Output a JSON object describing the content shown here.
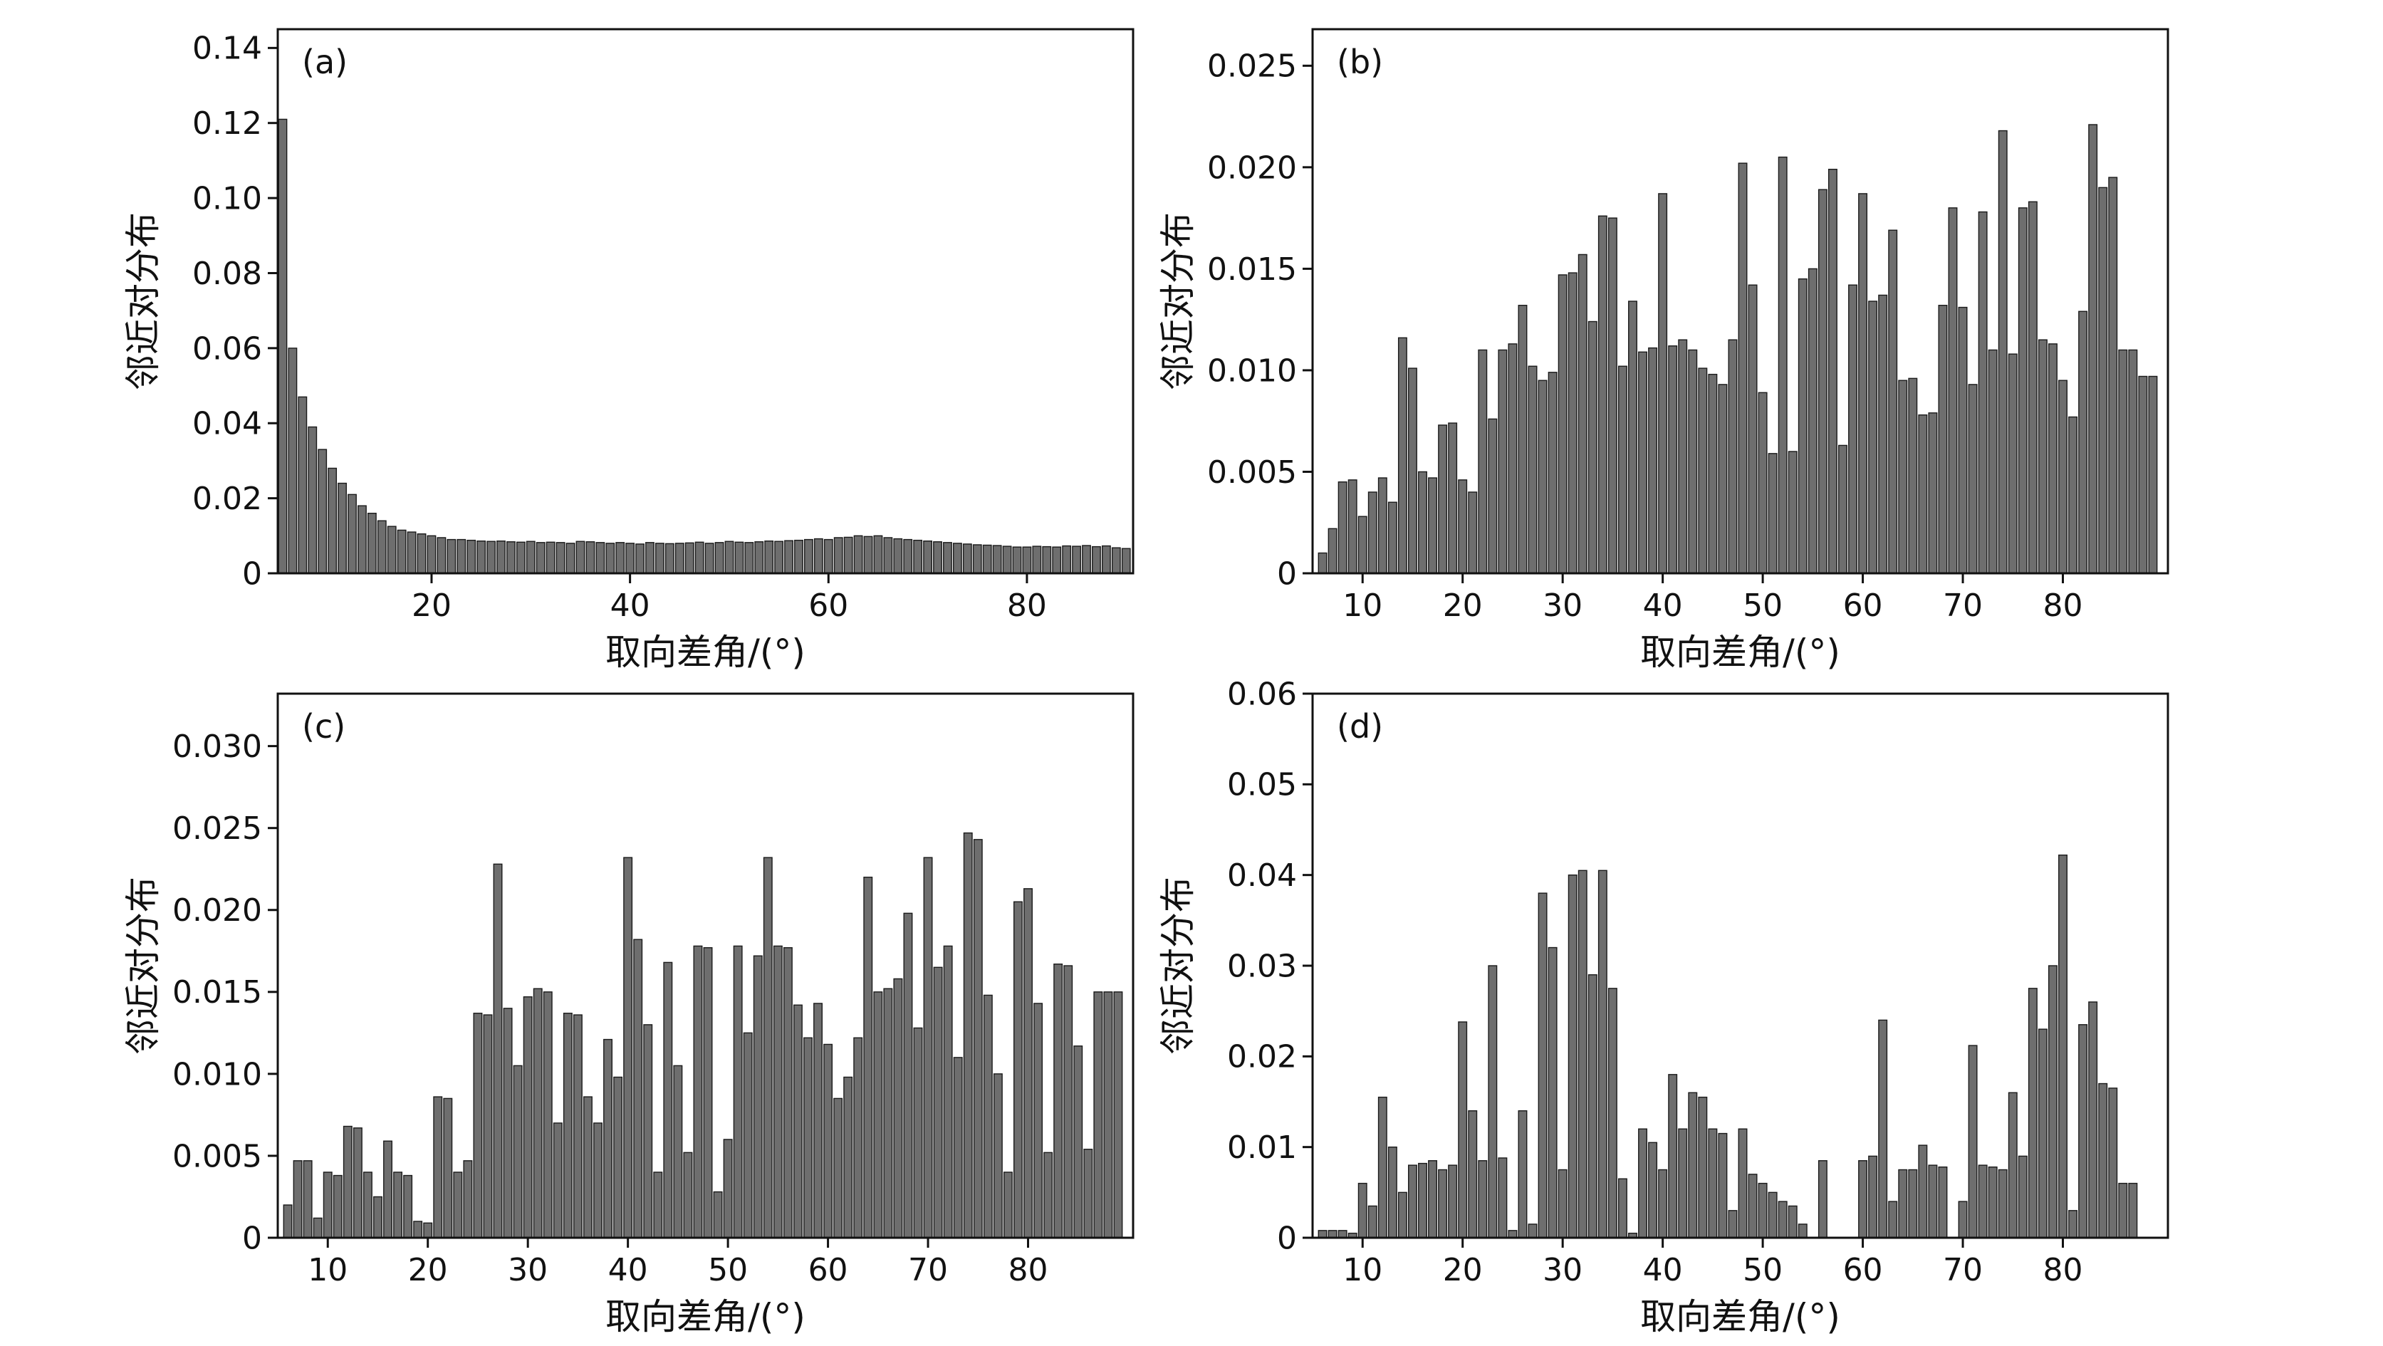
{
  "figure": {
    "x_axis_label": "取向差角/(°)",
    "y_axis_label": "邻近对分布",
    "bar_fill": "#6e6e6e",
    "bar_edge": "#1a1a1a",
    "frame_color": "#111111",
    "background": "#ffffff"
  },
  "chart_data": [
    {
      "type": "bar",
      "id": "a",
      "panel_label": "(a)",
      "xlabel": "取向差角/(°)",
      "ylabel": "邻近对分布",
      "xlim": [
        4.5,
        90.7
      ],
      "ylim": [
        0,
        0.145
      ],
      "xtick_values": [
        20,
        40,
        60,
        80
      ],
      "xtick_labels": [
        "20",
        "40",
        "60",
        "80"
      ],
      "ytick_values": [
        0,
        0.02,
        0.04,
        0.06,
        0.08,
        0.1,
        0.12,
        0.14
      ],
      "ytick_labels": [
        "0",
        "0.02",
        "0.04",
        "0.06",
        "0.08",
        "0.10",
        "0.12",
        "0.14"
      ],
      "x_start": 5,
      "values": [
        0.121,
        0.06,
        0.047,
        0.039,
        0.033,
        0.028,
        0.024,
        0.021,
        0.018,
        0.016,
        0.014,
        0.0125,
        0.0115,
        0.011,
        0.0105,
        0.01,
        0.0095,
        0.009,
        0.009,
        0.0088,
        0.0086,
        0.0085,
        0.0086,
        0.0084,
        0.0083,
        0.0085,
        0.0082,
        0.0083,
        0.0082,
        0.008,
        0.0085,
        0.0084,
        0.0082,
        0.008,
        0.0082,
        0.008,
        0.0078,
        0.0082,
        0.008,
        0.0079,
        0.008,
        0.0081,
        0.0083,
        0.008,
        0.0082,
        0.0085,
        0.0083,
        0.0082,
        0.0084,
        0.0086,
        0.0085,
        0.0087,
        0.0088,
        0.009,
        0.0092,
        0.009,
        0.0095,
        0.0096,
        0.01,
        0.0098,
        0.01,
        0.0095,
        0.0092,
        0.009,
        0.0088,
        0.0086,
        0.0084,
        0.0082,
        0.008,
        0.0078,
        0.0076,
        0.0075,
        0.0074,
        0.0072,
        0.007,
        0.007,
        0.0072,
        0.0071,
        0.007,
        0.0073,
        0.0072,
        0.0074,
        0.0071,
        0.0073,
        0.0068,
        0.0066
      ]
    },
    {
      "type": "bar",
      "id": "b",
      "panel_label": "(b)",
      "xlabel": "取向差角/(°)",
      "ylabel": "邻近对分布",
      "xlim": [
        5,
        90.5
      ],
      "ylim": [
        0,
        0.0268
      ],
      "xtick_values": [
        10,
        20,
        30,
        40,
        50,
        60,
        70,
        80
      ],
      "xtick_labels": [
        "10",
        "20",
        "30",
        "40",
        "50",
        "60",
        "70",
        "80"
      ],
      "ytick_values": [
        0,
        0.005,
        0.01,
        0.015,
        0.02,
        0.025
      ],
      "ytick_labels": [
        "0",
        "0.005",
        "0.010",
        "0.015",
        "0.020",
        "0.025"
      ],
      "x_start": 6,
      "values": [
        0.001,
        0.0022,
        0.0045,
        0.0046,
        0.0028,
        0.004,
        0.0047,
        0.0035,
        0.0116,
        0.0101,
        0.005,
        0.0047,
        0.0073,
        0.0074,
        0.0046,
        0.004,
        0.011,
        0.0076,
        0.011,
        0.0113,
        0.0132,
        0.0102,
        0.0095,
        0.0099,
        0.0147,
        0.0148,
        0.0157,
        0.0124,
        0.0176,
        0.0175,
        0.0102,
        0.0134,
        0.0109,
        0.0111,
        0.0187,
        0.0112,
        0.0115,
        0.011,
        0.0101,
        0.0098,
        0.0093,
        0.0115,
        0.0202,
        0.0142,
        0.0089,
        0.0059,
        0.0205,
        0.006,
        0.0145,
        0.015,
        0.0189,
        0.0199,
        0.0063,
        0.0142,
        0.0187,
        0.0134,
        0.0137,
        0.0169,
        0.0095,
        0.0096,
        0.0078,
        0.0079,
        0.0132,
        0.018,
        0.0131,
        0.0093,
        0.0178,
        0.011,
        0.0218,
        0.0108,
        0.018,
        0.0183,
        0.0115,
        0.0113,
        0.0095,
        0.0077,
        0.0129,
        0.0221,
        0.019,
        0.0195,
        0.011,
        0.011,
        0.0097,
        0.0097
      ]
    },
    {
      "type": "bar",
      "id": "c",
      "panel_label": "(c)",
      "xlabel": "取向差角/(°)",
      "ylabel": "邻近对分布",
      "xlim": [
        5,
        90.5
      ],
      "ylim": [
        0,
        0.0332
      ],
      "xtick_values": [
        10,
        20,
        30,
        40,
        50,
        60,
        70,
        80
      ],
      "xtick_labels": [
        "10",
        "20",
        "30",
        "40",
        "50",
        "60",
        "70",
        "80"
      ],
      "ytick_values": [
        0,
        0.005,
        0.01,
        0.015,
        0.02,
        0.025,
        0.03
      ],
      "ytick_labels": [
        "0",
        "0.005",
        "0.010",
        "0.015",
        "0.020",
        "0.025",
        "0.030"
      ],
      "x_start": 6,
      "values": [
        0.002,
        0.0047,
        0.0047,
        0.0012,
        0.004,
        0.0038,
        0.0068,
        0.0067,
        0.004,
        0.0025,
        0.0059,
        0.004,
        0.0038,
        0.001,
        0.0009,
        0.0086,
        0.0085,
        0.004,
        0.0047,
        0.0137,
        0.0136,
        0.0228,
        0.014,
        0.0105,
        0.0147,
        0.0152,
        0.015,
        0.007,
        0.0137,
        0.0136,
        0.0086,
        0.007,
        0.0121,
        0.0098,
        0.0232,
        0.0182,
        0.013,
        0.004,
        0.0168,
        0.0105,
        0.0052,
        0.0178,
        0.0177,
        0.0028,
        0.006,
        0.0178,
        0.0125,
        0.0172,
        0.0232,
        0.0178,
        0.0177,
        0.0142,
        0.0122,
        0.0143,
        0.0118,
        0.0085,
        0.0098,
        0.0122,
        0.022,
        0.015,
        0.0152,
        0.0158,
        0.0198,
        0.0128,
        0.0232,
        0.0165,
        0.0178,
        0.011,
        0.0247,
        0.0243,
        0.0148,
        0.01,
        0.004,
        0.0205,
        0.0213,
        0.0143,
        0.0052,
        0.0167,
        0.0166,
        0.0117,
        0.0054,
        0.015,
        0.015,
        0.015
      ]
    },
    {
      "type": "bar",
      "id": "d",
      "panel_label": "(d)",
      "xlabel": "取向差角/(°)",
      "ylabel": "邻近对分布",
      "xlim": [
        5,
        90.5
      ],
      "ylim": [
        0,
        0.06
      ],
      "xtick_values": [
        10,
        20,
        30,
        40,
        50,
        60,
        70,
        80
      ],
      "xtick_labels": [
        "10",
        "20",
        "30",
        "40",
        "50",
        "60",
        "70",
        "80"
      ],
      "ytick_values": [
        0,
        0.01,
        0.02,
        0.03,
        0.04,
        0.05,
        0.06
      ],
      "ytick_labels": [
        "0",
        "0.01",
        "0.02",
        "0.03",
        "0.04",
        "0.05",
        "0.06"
      ],
      "x_start": 6,
      "values": [
        0.0008,
        0.0008,
        0.0008,
        0.0005,
        0.006,
        0.0035,
        0.0155,
        0.01,
        0.005,
        0.008,
        0.0082,
        0.0085,
        0.0075,
        0.008,
        0.0238,
        0.014,
        0.0085,
        0.03,
        0.0088,
        0.0008,
        0.014,
        0.0015,
        0.038,
        0.032,
        0.0075,
        0.04,
        0.0405,
        0.029,
        0.0405,
        0.0275,
        0.0065,
        0.0005,
        0.012,
        0.0105,
        0.0075,
        0.018,
        0.012,
        0.016,
        0.0155,
        0.012,
        0.0115,
        0.003,
        0.012,
        0.007,
        0.006,
        0.005,
        0.004,
        0.0035,
        0.0015,
        0,
        0.0085,
        0,
        0,
        0,
        0.0085,
        0.009,
        0.024,
        0.004,
        0.0075,
        0.0075,
        0.0102,
        0.008,
        0.0078,
        0,
        0.004,
        0.0212,
        0.008,
        0.0078,
        0.0075,
        0.016,
        0.009,
        0.0275,
        0.023,
        0.03,
        0.0422,
        0.003,
        0.0235,
        0.026,
        0.017,
        0.0165,
        0.006,
        0.006,
        0,
        0
      ]
    }
  ]
}
